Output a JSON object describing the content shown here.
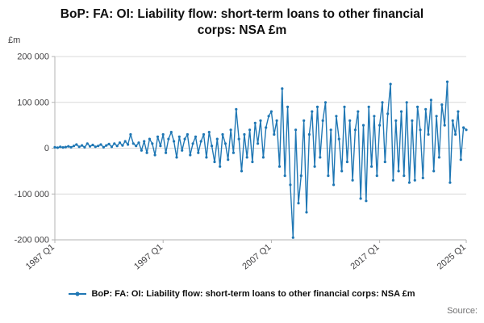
{
  "header": {
    "title": "BoP: FA: OI: Liability flow: short-term loans to other financial corps: NSA £m"
  },
  "legend": {
    "label": "BoP: FA: OI: Liability flow: short-term loans to other financial corps: NSA £m"
  },
  "footer": {
    "source_label": "Source:"
  },
  "chart_data": {
    "type": "line",
    "title": "BoP: FA: OI: Liability flow: short-term loans to other financial corps: NSA £m",
    "xlabel": "",
    "ylabel": "£m",
    "ylim": [
      -200000,
      200000
    ],
    "y_ticks": [
      200000,
      100000,
      0,
      -100000,
      -200000
    ],
    "y_tick_labels": [
      "200 000",
      "100 000",
      "0",
      "-100 000",
      "-200 000"
    ],
    "x_start": "1987 Q1",
    "x_end": "2025 Q1",
    "frequency": "quarterly",
    "x_tick_labels": [
      "1987 Q1",
      "1997 Q1",
      "2007 Q1",
      "2017 Q1",
      "2025 Q1"
    ],
    "x_tick_indices": [
      0,
      40,
      80,
      120,
      152
    ],
    "grid": true,
    "legend_position": "bottom",
    "series": [
      {
        "name": "BoP: FA: OI: Liability flow: short-term loans to other financial corps: NSA £m",
        "color": "#1f77b4",
        "values": [
          2000,
          1000,
          3000,
          1500,
          2500,
          4000,
          2000,
          5000,
          8000,
          3000,
          6000,
          2000,
          10000,
          4000,
          7000,
          3000,
          5000,
          8000,
          2000,
          6000,
          9000,
          3000,
          10000,
          5000,
          12000,
          6000,
          15000,
          8000,
          30000,
          10000,
          5000,
          12000,
          -5000,
          15000,
          -10000,
          20000,
          10000,
          -15000,
          25000,
          5000,
          30000,
          -10000,
          20000,
          35000,
          15000,
          -20000,
          25000,
          -5000,
          20000,
          30000,
          -15000,
          10000,
          25000,
          -10000,
          15000,
          30000,
          -20000,
          35000,
          5000,
          -30000,
          20000,
          -40000,
          30000,
          10000,
          -25000,
          40000,
          -10000,
          85000,
          20000,
          -50000,
          30000,
          -20000,
          40000,
          -30000,
          55000,
          10000,
          60000,
          -20000,
          45000,
          70000,
          80000,
          30000,
          60000,
          -40000,
          130000,
          -60000,
          90000,
          -80000,
          -195000,
          40000,
          -120000,
          -60000,
          60000,
          -140000,
          30000,
          80000,
          -40000,
          90000,
          -20000,
          60000,
          100000,
          -60000,
          40000,
          -80000,
          70000,
          20000,
          -50000,
          90000,
          -30000,
          60000,
          -70000,
          40000,
          80000,
          -110000,
          50000,
          -115000,
          90000,
          -40000,
          70000,
          -60000,
          50000,
          100000,
          -30000,
          75000,
          140000,
          -70000,
          60000,
          -50000,
          80000,
          -60000,
          100000,
          -75000,
          60000,
          -70000,
          90000,
          40000,
          -65000,
          85000,
          30000,
          105000,
          -50000,
          70000,
          -20000,
          95000,
          50000,
          145000,
          -75000,
          60000,
          30000,
          80000,
          -25000,
          45000,
          40000
        ]
      }
    ]
  }
}
